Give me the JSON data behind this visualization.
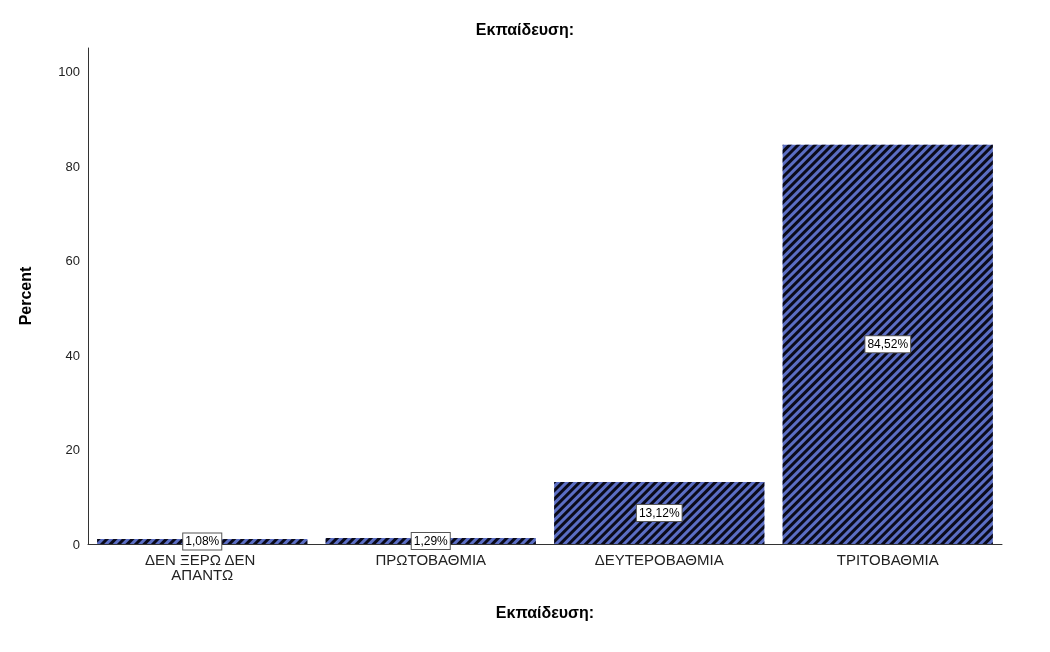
{
  "chart_data": {
    "type": "bar",
    "title": "Εκπαίδευση:",
    "xlabel": "Εκπαίδευση:",
    "ylabel": "Percent",
    "categories": [
      "ΔΕΝ ΞΕΡΩ ΔΕΝ ΑΠΑΝΤΩ",
      "ΠΡΩΤΟΒΑΘΜΙΑ",
      "ΔΕΥΤΕΡΟΒΑΘΜΙΑ",
      "ΤΡΙΤΟΒΑΘΜΙΑ"
    ],
    "values": [
      1.08,
      1.29,
      13.12,
      84.52
    ],
    "value_labels": [
      "1,08%",
      "1,29%",
      "13,12%",
      "84,52%"
    ],
    "color": "#5b6ec4",
    "ylim": [
      0,
      105
    ],
    "yticks": [
      0,
      20,
      40,
      60,
      80,
      100
    ],
    "grid": false
  }
}
